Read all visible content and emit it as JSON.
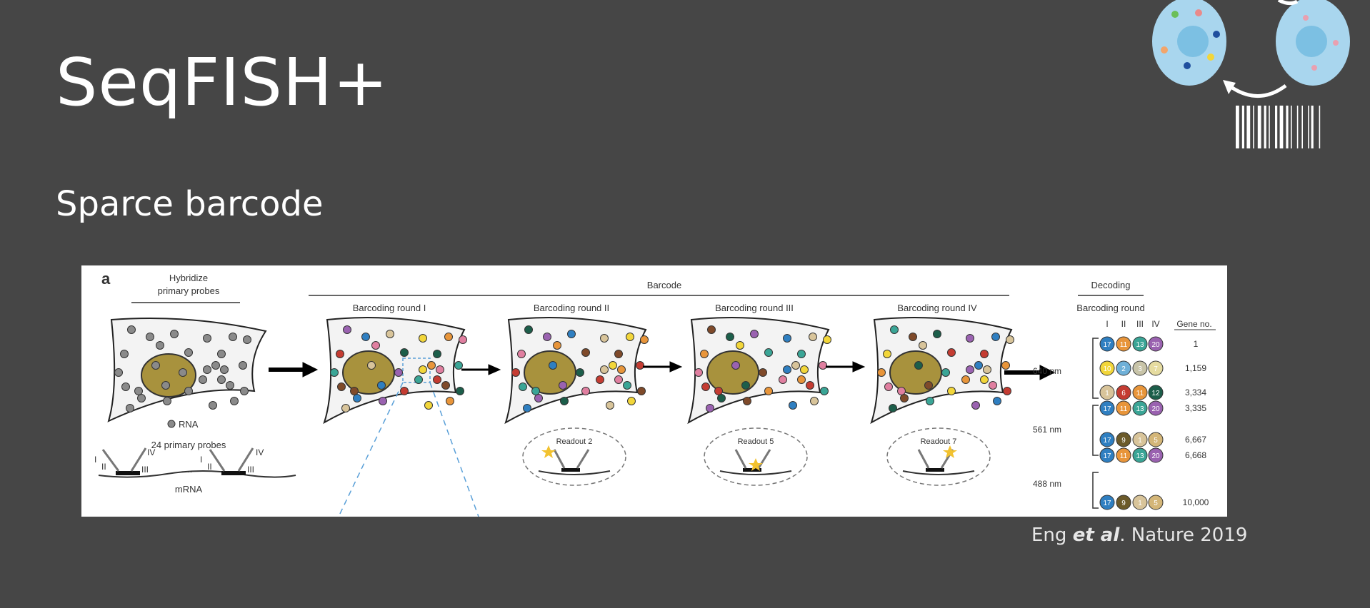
{
  "slide": {
    "title": "SeqFISH+",
    "subtitle": "Sparce barcode",
    "citation": {
      "authors": "Eng",
      "etal": "et al",
      "rest": ". Nature 2019"
    }
  },
  "figure": {
    "panel_label": "a",
    "hybridize": "Hybridize",
    "primary_probes": "primary probes",
    "rna_legend": "RNA",
    "probes_count": "24 primary probes",
    "mrna": "mRNA",
    "dots": "...",
    "barcode_header": "Barcode",
    "rounds": [
      "Barcoding round I",
      "Barcoding round II",
      "Barcoding round III",
      "Barcoding round IV"
    ],
    "readouts": [
      "Readout 2",
      "Readout 5",
      "Readout 7"
    ],
    "roman": [
      "I",
      "II",
      "III",
      "IV"
    ],
    "decoding": {
      "header": "Decoding",
      "round_label": "Barcoding round",
      "gene_header": "Gene no.",
      "channels": [
        "640 nm",
        "561 nm",
        "488 nm"
      ],
      "rows": [
        {
          "codes": [
            "17",
            "11",
            "13",
            "20"
          ],
          "gene": "1"
        },
        {
          "codes": [
            "10",
            "2",
            "3",
            "7"
          ],
          "gene": "1,159"
        },
        {
          "codes": [
            "1",
            "6",
            "11",
            "12"
          ],
          "gene": "3,334"
        },
        {
          "codes": [
            "17",
            "11",
            "13",
            "20"
          ],
          "gene": "3,335"
        },
        {
          "codes": [
            "17",
            "9",
            "1",
            "5"
          ],
          "gene": "6,667"
        },
        {
          "codes": [
            "17",
            "11",
            "13",
            "20"
          ],
          "gene": "6,668"
        },
        {
          "codes": [
            "17",
            "9",
            "1",
            "5"
          ],
          "gene": "10,000"
        }
      ]
    }
  },
  "colors": {
    "background": "#464646",
    "nucleus": "#a8923d",
    "rna_gray": "#8a8a8a",
    "blue": "#2f7fc1",
    "orange": "#e8953a",
    "teal": "#3aa596",
    "purple": "#9a62b0",
    "yellow": "#f2d63a",
    "red": "#c43c32",
    "dark_green": "#1c5e4a",
    "tan": "#d8c49a"
  }
}
